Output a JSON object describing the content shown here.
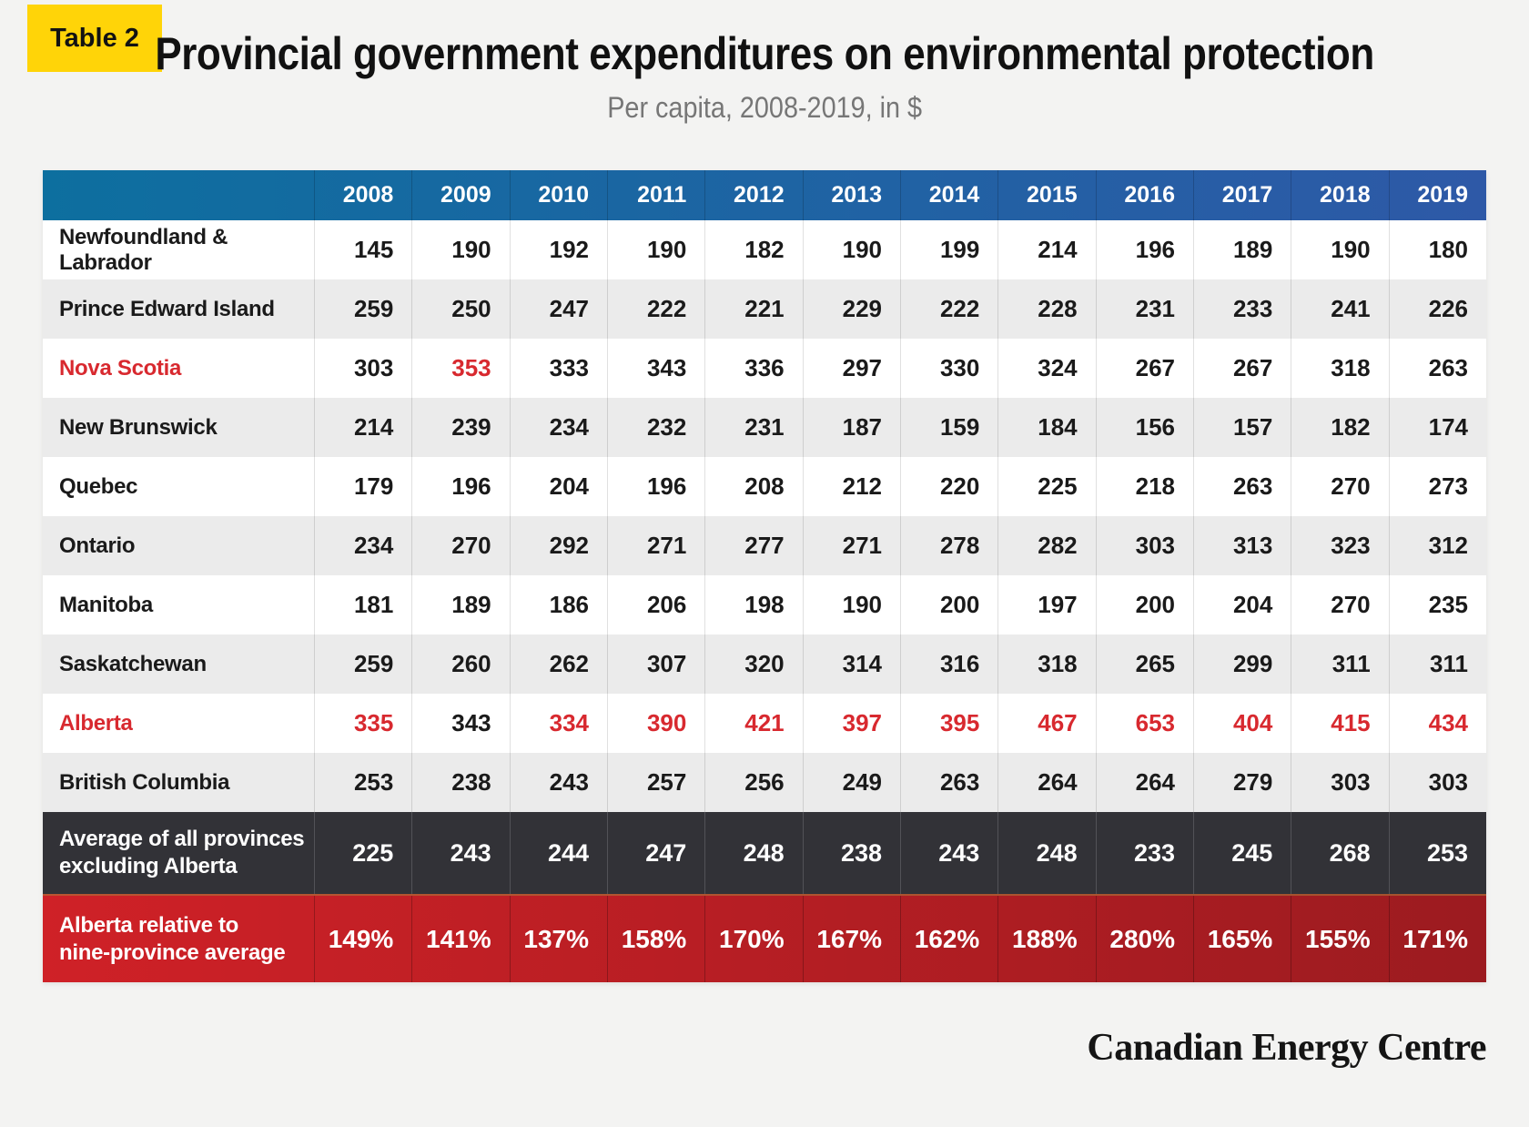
{
  "badge": {
    "label": "Table 2"
  },
  "title": "Provincial government expenditures on environmental protection",
  "subtitle": "Per capita, 2008-2019, in $",
  "footer": {
    "logo_text": "Canadian Energy Centre"
  },
  "colors": {
    "background": "#f3f3f2",
    "badge_yellow": "#ffd408",
    "header_blue_left": "#0d6f9f",
    "header_blue_right": "#2e59a7",
    "stripe_gray": "#ebebeb",
    "dark_row": "#323237",
    "red_row_left": "#cf2127",
    "red_row_right": "#9c1b20",
    "accent_red_text": "#d8292f",
    "text_black": "#1a1a1a"
  },
  "chart_data": {
    "type": "table",
    "title": "Provincial government expenditures on environmental protection",
    "subtitle": "Per capita, 2008-2019, in $",
    "columns": [
      "2008",
      "2009",
      "2010",
      "2011",
      "2012",
      "2013",
      "2014",
      "2015",
      "2016",
      "2017",
      "2018",
      "2019"
    ],
    "rows": [
      {
        "name": "Newfoundland & Labrador",
        "name_red": false,
        "values": [
          145,
          190,
          192,
          190,
          182,
          190,
          199,
          214,
          196,
          189,
          190,
          180
        ],
        "red_value_indices": []
      },
      {
        "name": "Prince Edward Island",
        "name_red": false,
        "values": [
          259,
          250,
          247,
          222,
          221,
          229,
          222,
          228,
          231,
          233,
          241,
          226
        ],
        "red_value_indices": []
      },
      {
        "name": "Nova Scotia",
        "name_red": true,
        "values": [
          303,
          353,
          333,
          343,
          336,
          297,
          330,
          324,
          267,
          267,
          318,
          263
        ],
        "red_value_indices": [
          1
        ]
      },
      {
        "name": "New Brunswick",
        "name_red": false,
        "values": [
          214,
          239,
          234,
          232,
          231,
          187,
          159,
          184,
          156,
          157,
          182,
          174
        ],
        "red_value_indices": []
      },
      {
        "name": "Quebec",
        "name_red": false,
        "values": [
          179,
          196,
          204,
          196,
          208,
          212,
          220,
          225,
          218,
          263,
          270,
          273
        ],
        "red_value_indices": []
      },
      {
        "name": "Ontario",
        "name_red": false,
        "values": [
          234,
          270,
          292,
          271,
          277,
          271,
          278,
          282,
          303,
          313,
          323,
          312
        ],
        "red_value_indices": []
      },
      {
        "name": "Manitoba",
        "name_red": false,
        "values": [
          181,
          189,
          186,
          206,
          198,
          190,
          200,
          197,
          200,
          204,
          270,
          235
        ],
        "red_value_indices": []
      },
      {
        "name": "Saskatchewan",
        "name_red": false,
        "values": [
          259,
          260,
          262,
          307,
          320,
          314,
          316,
          318,
          265,
          299,
          311,
          311
        ],
        "red_value_indices": []
      },
      {
        "name": "Alberta",
        "name_red": true,
        "values": [
          335,
          343,
          334,
          390,
          421,
          397,
          395,
          467,
          653,
          404,
          415,
          434
        ],
        "red_value_indices": [
          0,
          2,
          3,
          4,
          5,
          6,
          7,
          8,
          9,
          10,
          11
        ]
      },
      {
        "name": "British Columbia",
        "name_red": false,
        "values": [
          253,
          238,
          243,
          257,
          256,
          249,
          263,
          264,
          264,
          279,
          303,
          303
        ],
        "red_value_indices": []
      }
    ],
    "summary_rows": [
      {
        "id": "average",
        "label_lines": [
          "Average of all provinces",
          "excluding Alberta"
        ],
        "values": [
          "225",
          "243",
          "244",
          "247",
          "248",
          "238",
          "243",
          "248",
          "233",
          "245",
          "268",
          "253"
        ]
      },
      {
        "id": "ratio",
        "label_lines": [
          "Alberta relative to",
          "nine-province average"
        ],
        "values": [
          "149%",
          "141%",
          "137%",
          "158%",
          "170%",
          "167%",
          "162%",
          "188%",
          "280%",
          "165%",
          "155%",
          "171%"
        ]
      }
    ]
  }
}
